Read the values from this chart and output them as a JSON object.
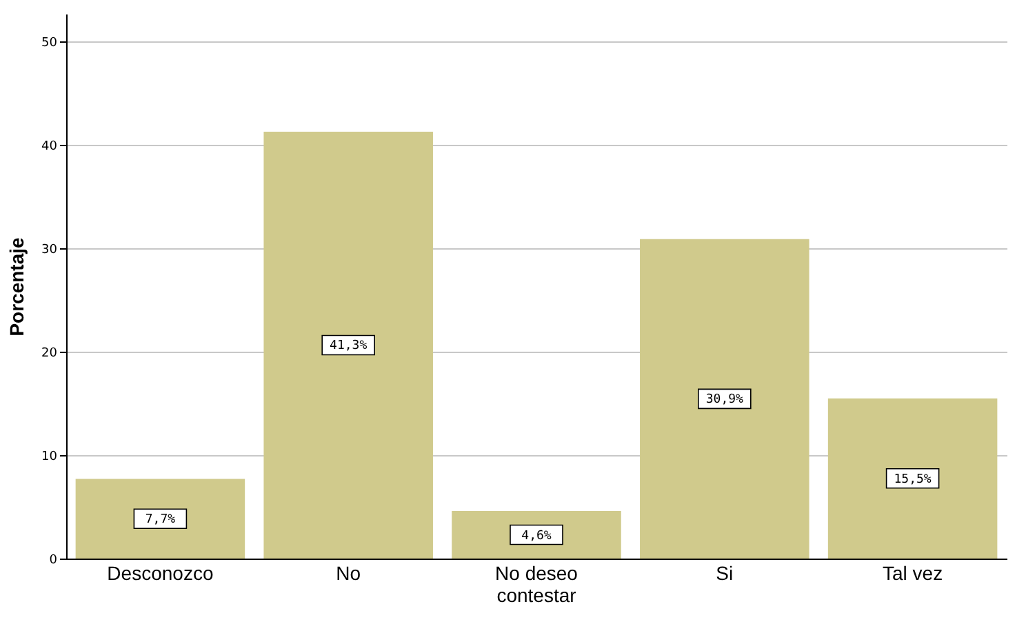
{
  "chart_data": {
    "type": "bar",
    "ylabel": "Porcentaje",
    "categories": [
      "Desconozco",
      "No",
      "No deseo contestar",
      "Si",
      "Tal vez"
    ],
    "values": [
      7.7,
      41.3,
      4.6,
      30.9,
      15.5
    ],
    "value_labels": [
      "7,7%",
      "41,3%",
      "4,6%",
      "30,9%",
      "15,5%"
    ],
    "color": "#d0ca8c",
    "ylim": [
      0,
      52.7
    ],
    "yticks": [
      0,
      10,
      20,
      30,
      40,
      50
    ],
    "grid": "y"
  }
}
